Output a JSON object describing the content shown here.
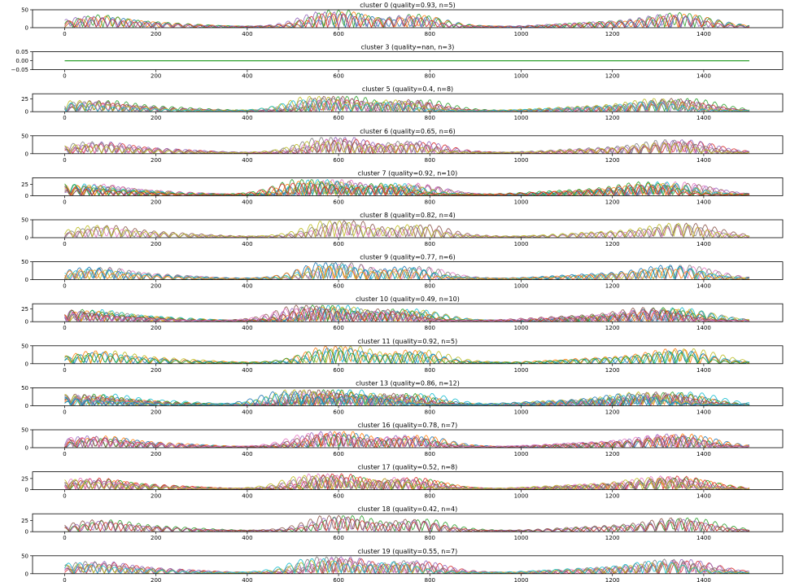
{
  "colors": [
    "#1f77b4",
    "#ff7f0e",
    "#2ca02c",
    "#d62728",
    "#9467bd",
    "#8c564b",
    "#e377c2",
    "#7f7f7f",
    "#bcbd22",
    "#17becf"
  ],
  "chart_data": [
    {
      "type": "line",
      "title": "cluster 0 (quality=0.93, n=5)",
      "n": 5,
      "ylim": [
        0,
        50
      ],
      "yticks": [
        "0",
        "50"
      ],
      "amp": 45,
      "x": [
        0,
        1500
      ],
      "xticks": [
        "0",
        "200",
        "400",
        "600",
        "800",
        "1000",
        "1200",
        "1400"
      ]
    },
    {
      "type": "line",
      "title": "cluster 3 (quality=nan, n=3)",
      "n": 3,
      "ylim": [
        -0.05,
        0.05
      ],
      "yticks": [
        "−0.05",
        "0.00",
        "0.05"
      ],
      "amp": 0,
      "flat": true,
      "x": [
        0,
        1500
      ],
      "xticks": [
        "0",
        "200",
        "400",
        "600",
        "800",
        "1000",
        "1200",
        "1400"
      ]
    },
    {
      "type": "line",
      "title": "cluster 5 (quality=0.4, n=8)",
      "n": 8,
      "ylim": [
        0,
        35
      ],
      "yticks": [
        "0",
        "25"
      ],
      "amp": 30,
      "x": [
        0,
        1500
      ],
      "xticks": [
        "0",
        "200",
        "400",
        "600",
        "800",
        "1000",
        "1200",
        "1400"
      ]
    },
    {
      "type": "line",
      "title": "cluster 6 (quality=0.65, n=6)",
      "n": 6,
      "ylim": [
        0,
        50
      ],
      "yticks": [
        "0",
        "50"
      ],
      "amp": 45,
      "x": [
        0,
        1500
      ],
      "xticks": [
        "0",
        "200",
        "400",
        "600",
        "800",
        "1000",
        "1200",
        "1400"
      ]
    },
    {
      "type": "line",
      "title": "cluster 7 (quality=0.92, n=10)",
      "n": 10,
      "ylim": [
        0,
        40
      ],
      "yticks": [
        "0",
        "25"
      ],
      "amp": 35,
      "x": [
        0,
        1500
      ],
      "xticks": [
        "0",
        "200",
        "400",
        "600",
        "800",
        "1000",
        "1200",
        "1400"
      ]
    },
    {
      "type": "line",
      "title": "cluster 8 (quality=0.82, n=4)",
      "n": 4,
      "ylim": [
        0,
        50
      ],
      "yticks": [
        "0",
        "50"
      ],
      "amp": 45,
      "x": [
        0,
        1500
      ],
      "xticks": [
        "0",
        "200",
        "400",
        "600",
        "800",
        "1000",
        "1200",
        "1400"
      ]
    },
    {
      "type": "line",
      "title": "cluster 9 (quality=0.77, n=6)",
      "n": 6,
      "ylim": [
        0,
        50
      ],
      "yticks": [
        "0",
        "50"
      ],
      "amp": 45,
      "x": [
        0,
        1500
      ],
      "xticks": [
        "0",
        "200",
        "400",
        "600",
        "800",
        "1000",
        "1200",
        "1400"
      ]
    },
    {
      "type": "line",
      "title": "cluster 10 (quality=0.49, n=10)",
      "n": 10,
      "ylim": [
        0,
        35
      ],
      "yticks": [
        "0",
        "25"
      ],
      "amp": 30,
      "x": [
        0,
        1500
      ],
      "xticks": [
        "0",
        "200",
        "400",
        "600",
        "800",
        "1000",
        "1200",
        "1400"
      ]
    },
    {
      "type": "line",
      "title": "cluster 11 (quality=0.92, n=5)",
      "n": 5,
      "ylim": [
        0,
        50
      ],
      "yticks": [
        "0",
        "50"
      ],
      "amp": 45,
      "x": [
        0,
        1500
      ],
      "xticks": [
        "0",
        "200",
        "400",
        "600",
        "800",
        "1000",
        "1200",
        "1400"
      ]
    },
    {
      "type": "line",
      "title": "cluster 13 (quality=0.86, n=12)",
      "n": 12,
      "ylim": [
        0,
        50
      ],
      "yticks": [
        "0",
        "50"
      ],
      "amp": 45,
      "x": [
        0,
        1500
      ],
      "xticks": [
        "0",
        "200",
        "400",
        "600",
        "800",
        "1000",
        "1200",
        "1400"
      ]
    },
    {
      "type": "line",
      "title": "cluster 16 (quality=0.78, n=7)",
      "n": 7,
      "ylim": [
        0,
        50
      ],
      "yticks": [
        "0",
        "50"
      ],
      "amp": 45,
      "x": [
        0,
        1500
      ],
      "xticks": [
        "0",
        "200",
        "400",
        "600",
        "800",
        "1000",
        "1200",
        "1400"
      ]
    },
    {
      "type": "line",
      "title": "cluster 17 (quality=0.52, n=8)",
      "n": 8,
      "ylim": [
        0,
        40
      ],
      "yticks": [
        "0",
        "25"
      ],
      "amp": 35,
      "x": [
        0,
        1500
      ],
      "xticks": [
        "0",
        "200",
        "400",
        "600",
        "800",
        "1000",
        "1200",
        "1400"
      ]
    },
    {
      "type": "line",
      "title": "cluster 18 (quality=0.42, n=4)",
      "n": 4,
      "ylim": [
        0,
        40
      ],
      "yticks": [
        "0",
        "25"
      ],
      "amp": 35,
      "x": [
        0,
        1500
      ],
      "xticks": [
        "0",
        "200",
        "400",
        "600",
        "800",
        "1000",
        "1200",
        "1400"
      ]
    },
    {
      "type": "line",
      "title": "cluster 19 (quality=0.55, n=7)",
      "n": 7,
      "ylim": [
        0,
        50
      ],
      "yticks": [
        "0",
        "50"
      ],
      "amp": 45,
      "x": [
        0,
        1500
      ],
      "xticks": [
        "0",
        "200",
        "400",
        "600",
        "800",
        "1000",
        "1200",
        "1400"
      ]
    }
  ]
}
